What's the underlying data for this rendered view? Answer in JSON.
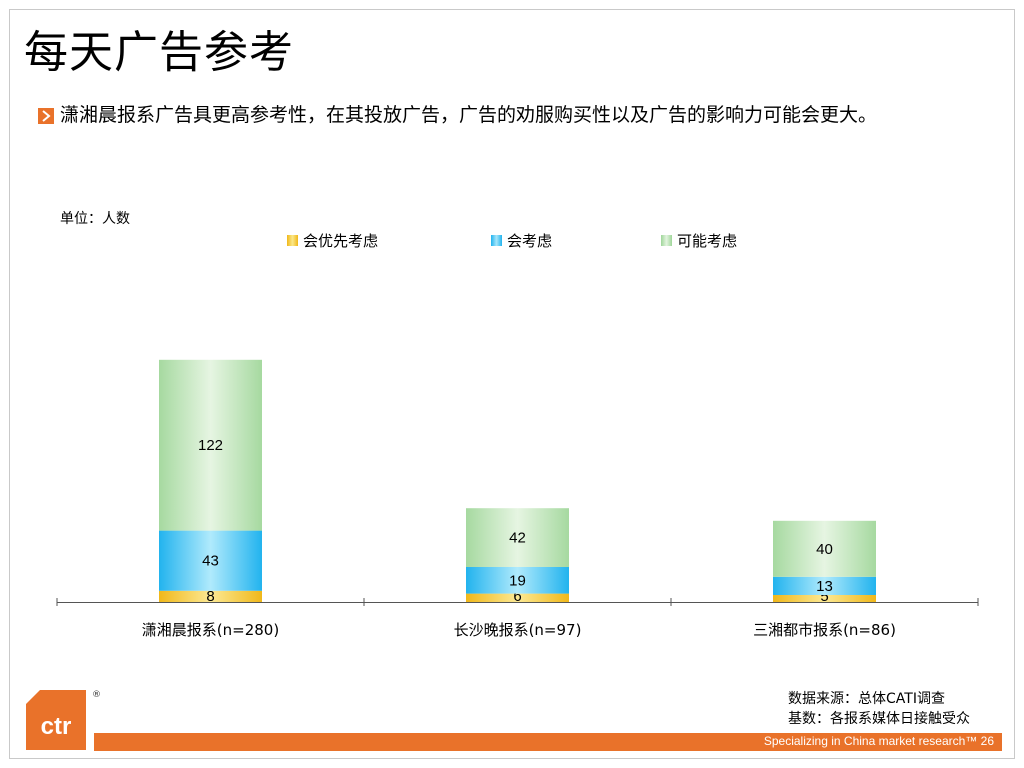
{
  "slide": {
    "title": "每天广告参考",
    "description": "潇湘晨报系广告具更高参考性，在其投放广告，广告的劝服购买性以及广告的影响力可能会更大。",
    "source_line1": "数据来源：总体CATI调查",
    "source_line2": "基数：各报系媒体日接触受众",
    "footer_tagline": "Specializing in China market research™",
    "page_number": "26",
    "logo_text": "ctr",
    "logo_mark": "®",
    "colors": {
      "accent": "#e9722a"
    }
  },
  "chart_data": {
    "type": "bar",
    "stacked": true,
    "unit_label": "单位：人数",
    "categories": [
      "潇湘晨报系(n=280)",
      "长沙晚报系(n=97)",
      "三湘都市报系(n=86)"
    ],
    "series": [
      {
        "name": "会优先考虑",
        "values": [
          8,
          6,
          5
        ],
        "color": "#f7d44a"
      },
      {
        "name": "会考虑",
        "values": [
          43,
          19,
          13
        ],
        "color": "#4cc8f4"
      },
      {
        "name": "可能考虑",
        "values": [
          122,
          42,
          40
        ],
        "color": "#bde3b5"
      }
    ],
    "legend_position": "top",
    "grid": false
  }
}
